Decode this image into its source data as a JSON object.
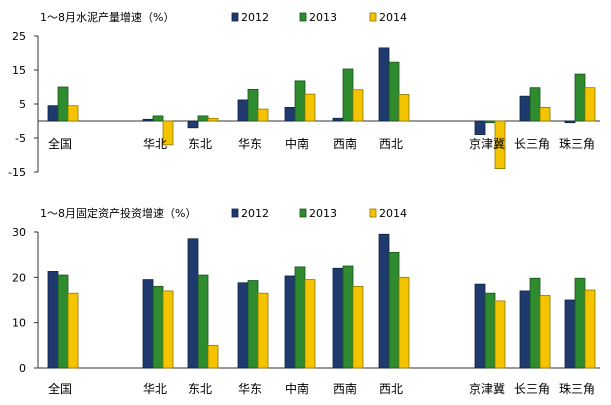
{
  "chart_data": [
    {
      "type": "bar",
      "title": "1～8月水泥产量增速（%）",
      "categories": [
        "全国",
        "华北",
        "东北",
        "华东",
        "中南",
        "西南",
        "西北",
        "京津冀",
        "长三角",
        "珠三角"
      ],
      "series": [
        {
          "name": "2012",
          "color": "#1F3A6E",
          "values": [
            4.5,
            0.5,
            -2.0,
            6.2,
            4.0,
            0.8,
            21.5,
            -4.0,
            7.3,
            -0.5
          ]
        },
        {
          "name": "2013",
          "color": "#2E8B2E",
          "values": [
            10.0,
            1.5,
            1.5,
            9.3,
            11.8,
            15.3,
            17.3,
            -0.5,
            9.8,
            13.8
          ]
        },
        {
          "name": "2014",
          "color": "#F5C400",
          "values": [
            4.5,
            -7.0,
            0.8,
            3.5,
            7.9,
            9.2,
            7.8,
            -14.0,
            4.0,
            9.8
          ]
        }
      ],
      "ylim": [
        -15,
        25
      ],
      "yticks": [
        "25",
        "15",
        "5",
        "-5",
        "-15"
      ],
      "legend_position": "top"
    },
    {
      "type": "bar",
      "title": "1～8月固定资产投资增速（%）",
      "categories": [
        "全国",
        "华北",
        "东北",
        "华东",
        "中南",
        "西南",
        "西北",
        "京津冀",
        "长三角",
        "珠三角"
      ],
      "series": [
        {
          "name": "2012",
          "color": "#1F3A6E",
          "values": [
            21.3,
            19.5,
            28.5,
            18.8,
            20.3,
            22.0,
            29.5,
            18.5,
            17.0,
            15.0
          ]
        },
        {
          "name": "2013",
          "color": "#2E8B2E",
          "values": [
            20.5,
            18.0,
            20.5,
            19.3,
            22.3,
            22.5,
            25.5,
            16.5,
            19.8,
            19.8
          ]
        },
        {
          "name": "2014",
          "color": "#F5C400",
          "values": [
            16.5,
            17.0,
            5.0,
            16.5,
            19.5,
            18.0,
            20.0,
            14.8,
            16.0,
            17.2
          ]
        }
      ],
      "ylim": [
        0,
        30
      ],
      "yticks": [
        "30",
        "20",
        "10",
        "0"
      ],
      "legend_position": "top"
    }
  ]
}
